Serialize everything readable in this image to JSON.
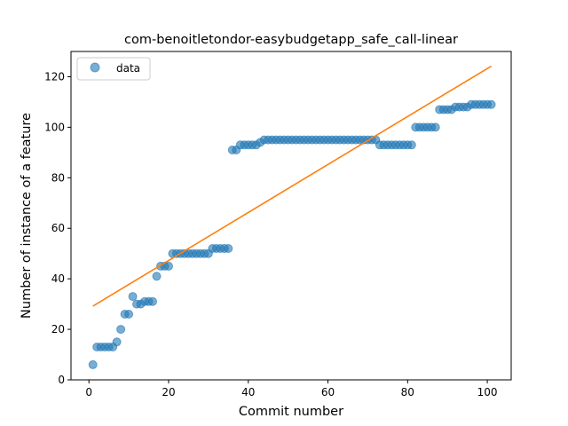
{
  "chart_data": {
    "type": "scatter",
    "title": "com-benoitletondor-easybudgetapp_safe_call-linear",
    "xlabel": "Commit number",
    "ylabel": "Number of instance of a feature",
    "xlim": [
      -4.5,
      106
    ],
    "ylim": [
      0,
      130
    ],
    "xticks": [
      0,
      20,
      40,
      60,
      80,
      100
    ],
    "yticks": [
      0,
      20,
      40,
      60,
      80,
      100,
      120
    ],
    "grid": false,
    "legend": {
      "placement": "top-left",
      "entries": [
        "data"
      ]
    },
    "colors": {
      "points": "#1f77b4",
      "fit": "#ff7f0e"
    },
    "series": [
      {
        "name": "data",
        "kind": "scatter",
        "x": [
          1,
          2,
          3,
          4,
          5,
          6,
          7,
          8,
          9,
          10,
          11,
          12,
          13,
          14,
          15,
          16,
          17,
          18,
          19,
          20,
          21,
          22,
          23,
          24,
          25,
          26,
          27,
          28,
          29,
          30,
          31,
          32,
          33,
          34,
          35,
          36,
          37,
          38,
          39,
          40,
          41,
          42,
          43,
          44,
          45,
          46,
          47,
          48,
          49,
          50,
          51,
          52,
          53,
          54,
          55,
          56,
          57,
          58,
          59,
          60,
          61,
          62,
          63,
          64,
          65,
          66,
          67,
          68,
          69,
          70,
          71,
          72,
          73,
          74,
          75,
          76,
          77,
          78,
          79,
          80,
          81,
          82,
          83,
          84,
          85,
          86,
          87,
          88,
          89,
          90,
          91,
          92,
          93,
          94,
          95,
          96,
          97,
          98,
          99,
          100,
          101
        ],
        "y": [
          6,
          13,
          13,
          13,
          13,
          13,
          15,
          20,
          26,
          26,
          33,
          30,
          30,
          31,
          31,
          31,
          41,
          45,
          45,
          45,
          50,
          50,
          50,
          50,
          50,
          50,
          50,
          50,
          50,
          50,
          52,
          52,
          52,
          52,
          52,
          91,
          91,
          93,
          93,
          93,
          93,
          93,
          94,
          95,
          95,
          95,
          95,
          95,
          95,
          95,
          95,
          95,
          95,
          95,
          95,
          95,
          95,
          95,
          95,
          95,
          95,
          95,
          95,
          95,
          95,
          95,
          95,
          95,
          95,
          95,
          95,
          95,
          93,
          93,
          93,
          93,
          93,
          93,
          93,
          93,
          93,
          100,
          100,
          100,
          100,
          100,
          100,
          107,
          107,
          107,
          107,
          108,
          108,
          108,
          108,
          109,
          109,
          109,
          109,
          109,
          109
        ]
      },
      {
        "kind": "line",
        "x": [
          1,
          101
        ],
        "y": [
          29.2,
          124.2
        ]
      }
    ]
  }
}
